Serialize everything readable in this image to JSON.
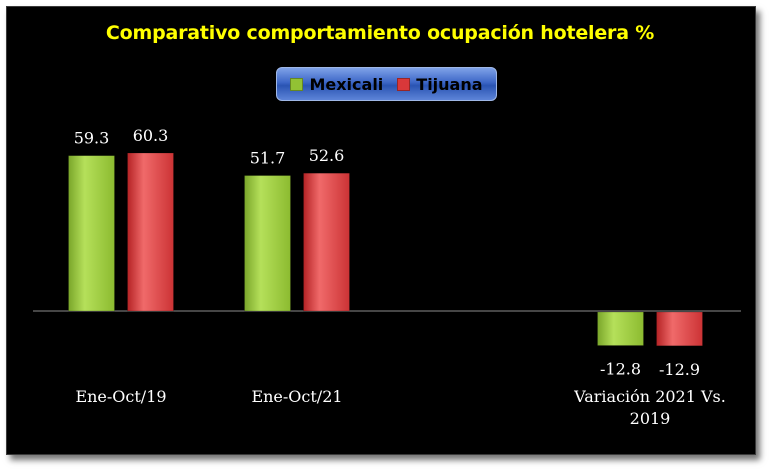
{
  "chart_data": {
    "type": "bar",
    "title": "Comparativo comportamiento ocupación hotelera %",
    "categories": [
      [
        "Ene-Oct/19"
      ],
      [
        "Ene-Oct/21"
      ],
      [
        "Variación 2021 Vs.",
        "2019"
      ]
    ],
    "series": [
      {
        "name": "Mexicali",
        "values": [
          59.3,
          51.7,
          -12.8
        ],
        "color": "#92c234"
      },
      {
        "name": "Tijuana",
        "values": [
          60.3,
          52.6,
          -12.9
        ],
        "color": "#d9383a"
      }
    ],
    "ylim": [
      -12.9,
      60.3
    ],
    "legend_position": "top",
    "grid": false,
    "background": "#000000"
  }
}
